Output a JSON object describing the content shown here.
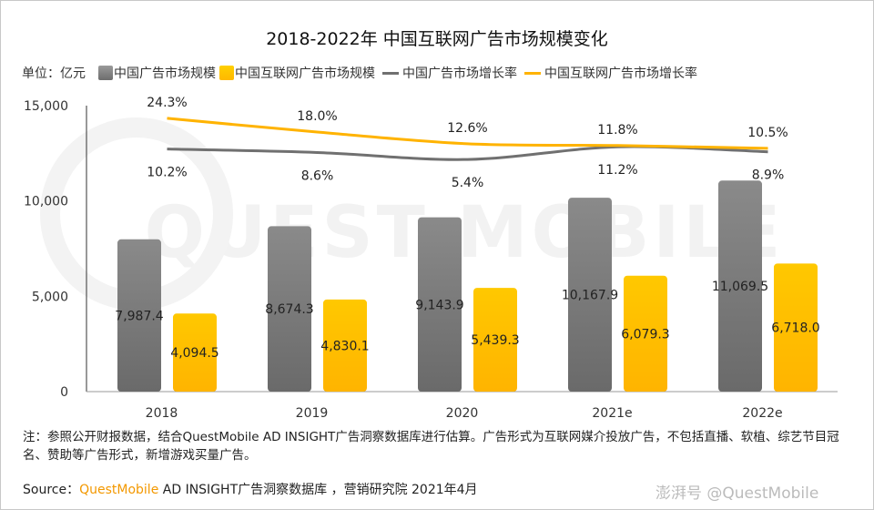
{
  "chart_data": {
    "type": "bar",
    "title": "2018-2022年 中国互联网广告市场规模变化",
    "unit_label": "单位：亿元",
    "categories": [
      "2018",
      "2019",
      "2020",
      "2021e",
      "2022e"
    ],
    "ylim": [
      0,
      15000
    ],
    "yticks": [
      "0",
      "5,000",
      "10,000",
      "15,000"
    ],
    "ytick_values": [
      0,
      5000,
      10000,
      15000
    ],
    "grid": false,
    "legend_placement": "top",
    "series": [
      {
        "name": "中国广告市场规模",
        "kind": "bar",
        "color": "#7f7f7f",
        "values": [
          7987.4,
          8674.3,
          9143.9,
          10167.9,
          11069.5
        ],
        "labels": [
          "7,987.4",
          "8,674.3",
          "9,143.9",
          "10,167.9",
          "11,069.5"
        ]
      },
      {
        "name": "中国互联网广告市场规模",
        "kind": "bar",
        "color": "#ffc000",
        "values": [
          4094.5,
          4830.1,
          5439.3,
          6079.3,
          6718.0
        ],
        "labels": [
          "4,094.5",
          "4,830.1",
          "5,439.3",
          "6,079.3",
          "6,718.0"
        ]
      },
      {
        "name": "中国广告市场增长率",
        "kind": "line",
        "axis": "secondary",
        "color": "#707070",
        "values": [
          10.2,
          8.6,
          5.4,
          11.2,
          8.9
        ],
        "labels": [
          "10.2%",
          "8.6%",
          "5.4%",
          "11.2%",
          "8.9%"
        ]
      },
      {
        "name": "中国互联网广告市场增长率",
        "kind": "line",
        "axis": "secondary",
        "color": "#ffb300",
        "values": [
          24.3,
          18.0,
          12.6,
          11.8,
          10.5
        ],
        "labels": [
          "24.3%",
          "18.0%",
          "12.6%",
          "11.8%",
          "10.5%"
        ]
      }
    ]
  },
  "note": "注：参照公开财报数据，结合QuestMobile AD INSIGHT广告洞察数据库进行估算。广告形式为互联网媒介投放广告，不包括直播、软植、综艺节目冠名、赞助等广告形式，新增游戏买量广告。",
  "source": {
    "prefix": "Source：",
    "brand": "QuestMobile",
    "rest": " AD INSIGHT广告洞察数据库 ，营销研究院 2021年4月"
  },
  "watermark": "澎湃号 @QuestMobile",
  "background_watermark": "QUEST MOBILE"
}
